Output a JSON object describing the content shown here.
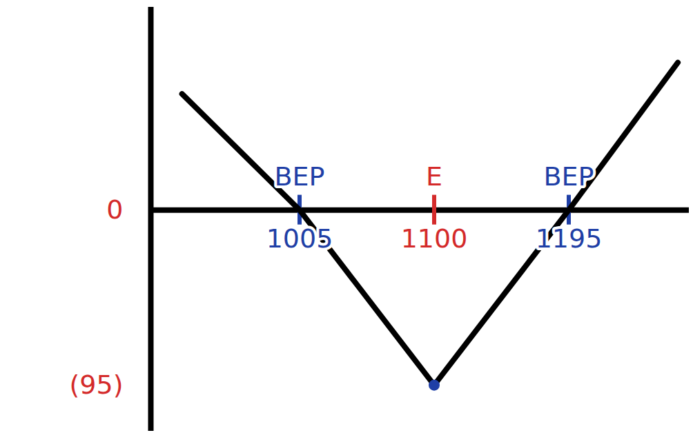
{
  "chart_data": {
    "type": "line",
    "x": [
      922,
      1005,
      1100,
      1195,
      1272
    ],
    "values": [
      63,
      0,
      -95,
      0,
      80
    ],
    "color": "#000000",
    "xlim": [
      900,
      1280
    ],
    "ylim": [
      -120,
      110
    ],
    "xticks": [
      1005,
      1100,
      1195
    ],
    "yticks": [
      0,
      {
        "value": -95,
        "label": "(95)"
      }
    ],
    "tick_labels": true,
    "annotations": [
      {
        "x": 1005,
        "text": "BEP",
        "color": "#1f3fa6"
      },
      {
        "x": 1100,
        "text": "E",
        "color": "#d42a2a"
      },
      {
        "x": 1195,
        "text": "BEP",
        "color": "#1f3fa6"
      }
    ],
    "highlight": {
      "x": 1100,
      "y": -95,
      "color": "#1f3fa6"
    }
  }
}
